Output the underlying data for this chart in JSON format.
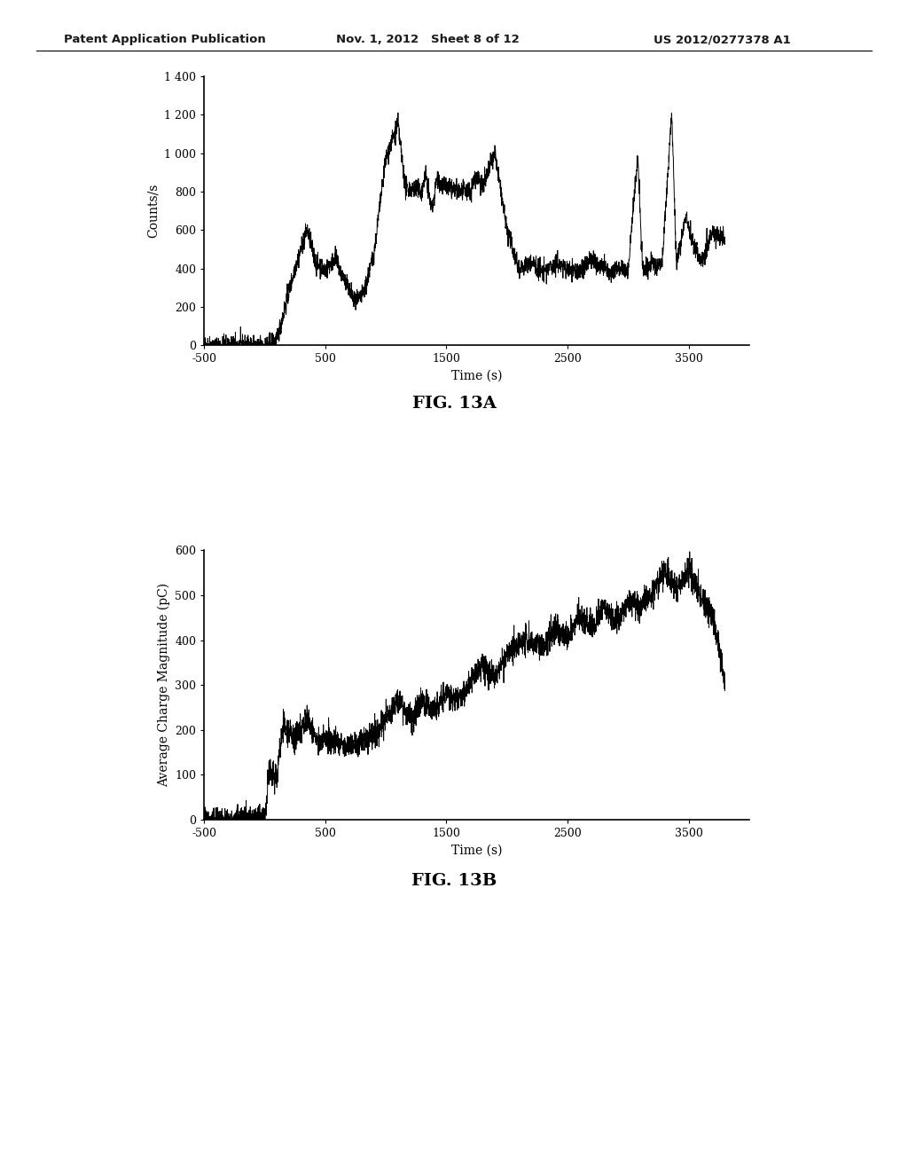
{
  "header_left": "Patent Application Publication",
  "header_mid": "Nov. 1, 2012   Sheet 8 of 12",
  "header_right": "US 2012/0277378 A1",
  "fig13a_label": "FIG. 13A",
  "fig13b_label": "FIG. 13B",
  "plot1": {
    "xlabel": "Time (s)",
    "ylabel": "Counts/s",
    "xlim": [
      -500,
      4000
    ],
    "ylim": [
      0,
      1400
    ],
    "xticks": [
      -500,
      500,
      1500,
      2500,
      3500
    ],
    "yticks": [
      0,
      200,
      400,
      600,
      800,
      1000,
      1200,
      1400
    ],
    "ytick_labels": [
      "0",
      "200",
      "400",
      "600",
      "800",
      "1 000",
      "1 200",
      "1 400"
    ],
    "xtick_labels": [
      "-500",
      "500",
      "1500",
      "2500",
      "3500"
    ]
  },
  "plot2": {
    "xlabel": "Time (s)",
    "ylabel": "Average Charge Magnitude (pC)",
    "xlim": [
      -500,
      4000
    ],
    "ylim": [
      0,
      600
    ],
    "xticks": [
      -500,
      500,
      1500,
      2500,
      3500
    ],
    "yticks": [
      0,
      100,
      200,
      300,
      400,
      500,
      600
    ],
    "ytick_labels": [
      "0",
      "100",
      "200",
      "300",
      "400",
      "500",
      "600"
    ],
    "xtick_labels": [
      "-500",
      "500",
      "1500",
      "2500",
      "3500"
    ]
  },
  "background_color": "#ffffff",
  "line_color": "#000000",
  "text_color": "#000000"
}
